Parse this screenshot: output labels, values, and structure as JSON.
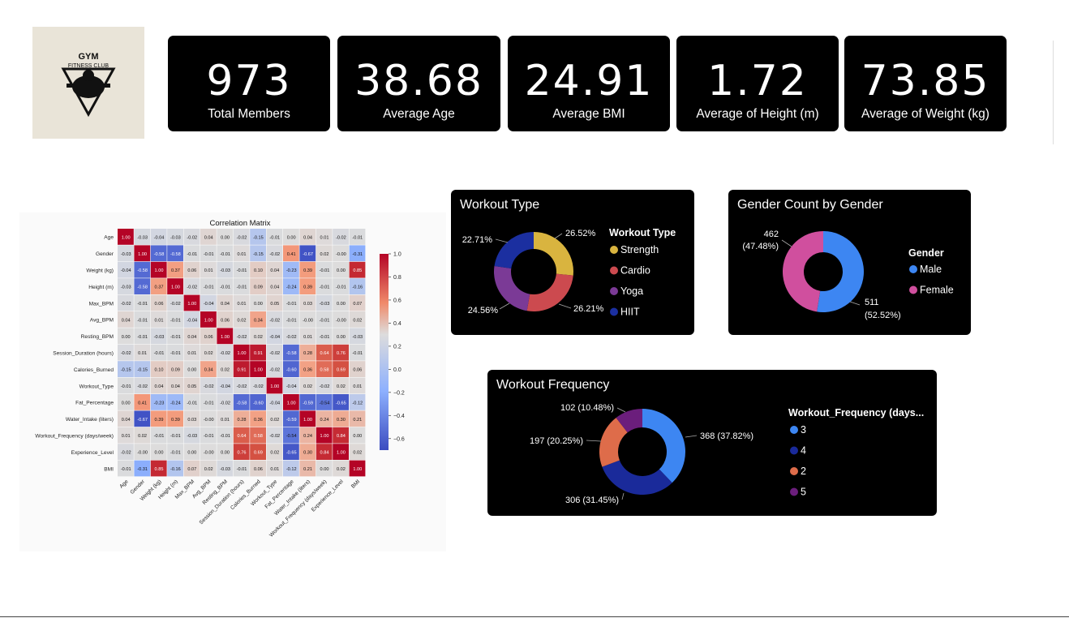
{
  "logo": {
    "line1": "GYM",
    "line2": "FITNESS CLUB"
  },
  "kpis": [
    {
      "value": "973",
      "label": "Total Members"
    },
    {
      "value": "38.68",
      "label": "Average Age"
    },
    {
      "value": "24.91",
      "label": "Average BMI"
    },
    {
      "value": "1.72",
      "label": "Average of Height (m)"
    },
    {
      "value": "73.85",
      "label": "Average of Weight (kg)"
    }
  ],
  "colors": {
    "strength": "#d9b43f",
    "cardio": "#cc4a4f",
    "yoga": "#7b3a96",
    "hiit": "#1b2fa0",
    "male": "#3d86f2",
    "female": "#d04f9e",
    "f3": "#3d86f2",
    "f4": "#1a2a9a",
    "f2": "#de6c4a",
    "f5": "#6b1e7c"
  },
  "chart_data": [
    {
      "type": "heatmap",
      "title": "Correlation Matrix",
      "labels": [
        "Age",
        "Gender",
        "Weight (kg)",
        "Height (m)",
        "Max_BPM",
        "Avg_BPM",
        "Resting_BPM",
        "Session_Duration (hours)",
        "Calories_Burned",
        "Workout_Type",
        "Fat_Percentage",
        "Water_Intake (liters)",
        "Workout_Frequency (days/week)",
        "Experience_Level",
        "BMI"
      ],
      "values": [
        [
          "1.00",
          "-0.03",
          "-0.04",
          "-0.03",
          "-0.02",
          "0.04",
          "0.00",
          "-0.02",
          "-0.15",
          "-0.01",
          "0.00",
          "0.04",
          "0.01",
          "-0.02",
          "-0.01"
        ],
        [
          "-0.03",
          "1.00",
          "-0.58",
          "-0.58",
          "-0.01",
          "-0.01",
          "-0.01",
          "0.01",
          "-0.15",
          "-0.02",
          "0.41",
          "-0.67",
          "0.02",
          "-0.00",
          "-0.31"
        ],
        [
          "-0.04",
          "-0.58",
          "1.00",
          "0.37",
          "0.06",
          "0.01",
          "-0.03",
          "-0.01",
          "0.10",
          "0.04",
          "-0.23",
          "0.39",
          "-0.01",
          "0.00",
          "0.85"
        ],
        [
          "-0.03",
          "-0.58",
          "0.37",
          "1.00",
          "-0.02",
          "-0.01",
          "-0.01",
          "-0.01",
          "0.09",
          "0.04",
          "-0.24",
          "0.39",
          "-0.01",
          "-0.01",
          "-0.16"
        ],
        [
          "-0.02",
          "-0.01",
          "0.06",
          "-0.02",
          "1.00",
          "-0.04",
          "0.04",
          "0.01",
          "0.00",
          "0.05",
          "-0.01",
          "0.03",
          "-0.03",
          "0.00",
          "0.07"
        ],
        [
          "0.04",
          "-0.01",
          "0.01",
          "-0.01",
          "-0.04",
          "1.00",
          "0.06",
          "0.02",
          "0.34",
          "-0.02",
          "-0.01",
          "-0.00",
          "-0.01",
          "-0.00",
          "0.02"
        ],
        [
          "0.00",
          "-0.01",
          "-0.03",
          "-0.01",
          "0.04",
          "0.06",
          "1.00",
          "-0.02",
          "0.02",
          "-0.04",
          "-0.02",
          "0.01",
          "-0.01",
          "0.00",
          "-0.03"
        ],
        [
          "-0.02",
          "0.01",
          "-0.01",
          "-0.01",
          "0.01",
          "0.02",
          "-0.02",
          "1.00",
          "0.91",
          "-0.02",
          "-0.58",
          "0.28",
          "0.64",
          "0.76",
          "-0.01"
        ],
        [
          "-0.15",
          "-0.15",
          "0.10",
          "0.09",
          "0.00",
          "0.34",
          "0.02",
          "0.91",
          "1.00",
          "-0.02",
          "-0.60",
          "0.36",
          "0.58",
          "0.69",
          "0.06"
        ],
        [
          "-0.01",
          "-0.02",
          "0.04",
          "0.04",
          "0.05",
          "-0.02",
          "-0.04",
          "-0.02",
          "-0.02",
          "1.00",
          "-0.04",
          "0.02",
          "-0.02",
          "0.02",
          "0.01"
        ],
        [
          "0.00",
          "0.41",
          "-0.23",
          "-0.24",
          "-0.01",
          "-0.01",
          "-0.02",
          "-0.58",
          "-0.60",
          "-0.04",
          "1.00",
          "-0.59",
          "-0.54",
          "-0.65",
          "-0.12"
        ],
        [
          "0.04",
          "-0.67",
          "0.39",
          "0.39",
          "0.03",
          "-0.00",
          "0.01",
          "0.28",
          "0.36",
          "0.02",
          "-0.59",
          "1.00",
          "0.24",
          "0.30",
          "0.21"
        ],
        [
          "0.01",
          "0.02",
          "-0.01",
          "-0.01",
          "-0.03",
          "-0.01",
          "-0.01",
          "0.64",
          "0.58",
          "-0.02",
          "-0.54",
          "0.24",
          "1.00",
          "0.84",
          "0.00"
        ],
        [
          "-0.02",
          "-0.00",
          "0.00",
          "-0.01",
          "0.00",
          "-0.00",
          "0.00",
          "0.76",
          "0.69",
          "0.02",
          "-0.65",
          "0.30",
          "0.84",
          "1.00",
          "0.02"
        ],
        [
          "-0.01",
          "-0.31",
          "0.85",
          "-0.16",
          "0.07",
          "0.02",
          "-0.03",
          "-0.01",
          "0.06",
          "0.01",
          "-0.12",
          "0.21",
          "0.00",
          "0.02",
          "1.00"
        ]
      ],
      "colorbar": {
        "range": [
          -0.7,
          1.0
        ],
        "ticks": [
          "1.0",
          "0.8",
          "0.6",
          "0.4",
          "0.2",
          "0.0",
          "−0.2",
          "−0.4",
          "−0.6"
        ]
      }
    },
    {
      "type": "pie",
      "title": "Workout Type",
      "legend_title": "Workout Type",
      "slices": [
        {
          "name": "Strength",
          "value": 26.52,
          "label": "26.52%"
        },
        {
          "name": "Cardio",
          "value": 26.21,
          "label": "26.21%"
        },
        {
          "name": "Yoga",
          "value": 24.56,
          "label": "24.56%"
        },
        {
          "name": "HIIT",
          "value": 22.71,
          "label": "22.71%"
        }
      ]
    },
    {
      "type": "pie",
      "title": "Gender Count by Gender",
      "legend_title": "Gender",
      "slices": [
        {
          "name": "Male",
          "value": 511,
          "label_count": "511",
          "label_pct": "(52.52%)"
        },
        {
          "name": "Female",
          "value": 462,
          "label_count": "462",
          "label_pct": "(47.48%)"
        }
      ]
    },
    {
      "type": "pie",
      "title": "Workout Frequency",
      "legend_title": "Workout_Frequency (days...",
      "slices": [
        {
          "name": "3",
          "value": 368,
          "label": "368 (37.82%)"
        },
        {
          "name": "4",
          "value": 306,
          "label": "306 (31.45%)"
        },
        {
          "name": "2",
          "value": 197,
          "label": "197 (20.25%)"
        },
        {
          "name": "5",
          "value": 102,
          "label": "102 (10.48%)"
        }
      ]
    }
  ]
}
